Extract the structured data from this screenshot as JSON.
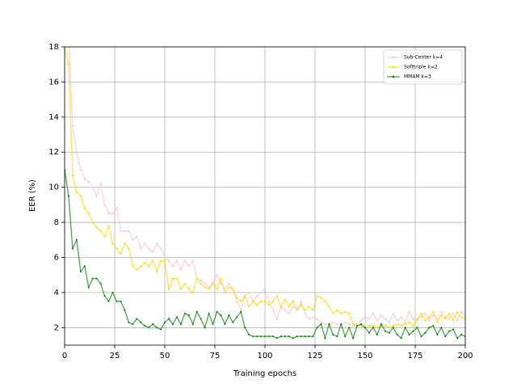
{
  "chart_data": {
    "type": "line",
    "xlabel": "Training epochs",
    "ylabel": "EER (%)",
    "x": [
      0,
      2,
      4,
      6,
      8,
      10,
      12,
      14,
      16,
      18,
      20,
      22,
      24,
      26,
      28,
      30,
      32,
      34,
      36,
      38,
      40,
      42,
      44,
      46,
      48,
      50,
      52,
      54,
      56,
      58,
      60,
      62,
      64,
      66,
      68,
      70,
      72,
      74,
      76,
      78,
      80,
      82,
      84,
      86,
      88,
      90,
      92,
      94,
      96,
      98,
      100,
      102,
      104,
      106,
      108,
      110,
      112,
      114,
      116,
      118,
      120,
      122,
      124,
      126,
      128,
      130,
      132,
      134,
      136,
      138,
      140,
      142,
      144,
      146,
      148,
      150,
      152,
      154,
      156,
      158,
      160,
      162,
      164,
      166,
      168,
      170,
      172,
      174,
      176,
      178,
      180,
      182,
      184,
      186,
      188,
      190,
      192,
      194,
      196,
      198,
      200
    ],
    "series": [
      {
        "name": "Sub-Center k=4",
        "color": "#ffc0cb",
        "values": [
          22,
          18.5,
          13.5,
          12,
          11,
          10.5,
          10.3,
          10,
          9.5,
          10.2,
          9,
          8.5,
          8.5,
          8.8,
          7.5,
          7.5,
          7.5,
          7,
          7.2,
          6.5,
          6.8,
          6.5,
          6.3,
          6.8,
          6.5,
          6,
          5.8,
          5.5,
          5.8,
          5.3,
          5.8,
          5.5,
          5.8,
          4.8,
          4.7,
          4.5,
          4.3,
          4.6,
          5,
          4.5,
          4.2,
          4.5,
          4.2,
          3.5,
          3,
          3.8,
          4,
          3.5,
          3.8,
          4,
          4.2,
          3.5,
          3,
          2.5,
          3.2,
          3,
          2.8,
          3.2,
          3,
          3.5,
          2.8,
          2.5,
          2.6,
          2.5,
          2.3,
          2.2,
          2.1,
          2.3,
          2.2,
          2.1,
          2.3,
          2.2,
          2.1,
          2.2,
          2.4,
          2.6,
          2.5,
          2.8,
          2.4,
          2.7,
          2.5,
          2.3,
          2.8,
          2.4,
          2.6,
          2.3,
          2.9,
          2.5,
          2.4,
          2.6,
          2.8,
          2.4,
          2.7,
          2.5,
          2.9,
          2.6,
          2.5,
          2.8,
          2.4,
          2.9,
          2.7
        ]
      },
      {
        "name": "Softtriple k=2",
        "color": "#ffd700",
        "values": [
          18,
          17,
          10.7,
          9.7,
          9.5,
          8.8,
          8.5,
          8,
          7.7,
          7.5,
          7.2,
          7.8,
          6.8,
          6.5,
          6.2,
          6.8,
          6.5,
          5.5,
          5.3,
          5.5,
          5.7,
          5.5,
          5.8,
          5.2,
          5.8,
          5.8,
          4.2,
          4.8,
          4.8,
          4.2,
          4.5,
          4.2,
          4,
          4.8,
          4.5,
          4.3,
          4.2,
          4.5,
          4.2,
          4.8,
          4,
          4.3,
          4.2,
          3.7,
          3.5,
          3.8,
          3.2,
          3.5,
          3.3,
          3.5,
          3.5,
          3.3,
          3.5,
          3.8,
          3.2,
          3.6,
          3.2,
          3.5,
          3,
          3.3,
          3,
          3.2,
          3,
          3.8,
          3.7,
          3.5,
          3.2,
          2.8,
          3,
          2.8,
          2.9,
          2.8,
          2.2,
          2.1,
          2.1,
          2,
          2.1,
          2.1,
          2,
          2.1,
          2.1,
          2,
          2.1,
          2.2,
          2.1,
          2.2,
          2.3,
          2.1,
          2.5,
          2.8,
          2.4,
          2.6,
          2.9,
          2.3,
          2.7,
          2.5,
          2.8,
          2.4,
          2.9,
          2.6,
          2.5
        ]
      },
      {
        "name": "MMAM k=3",
        "color": "#008000",
        "values": [
          11,
          9.5,
          6.5,
          7,
          5.2,
          5.5,
          4.3,
          4.8,
          4.8,
          4.5,
          3.8,
          3.5,
          4,
          3.5,
          3.5,
          3,
          2.3,
          2.2,
          2.5,
          2.3,
          2.1,
          2,
          2.2,
          2,
          1.9,
          2.3,
          2.5,
          2.2,
          2.6,
          2.2,
          2.8,
          2.7,
          2.2,
          2.9,
          2.5,
          2,
          2.8,
          2.2,
          2.9,
          2.7,
          2.2,
          2.7,
          2.3,
          2.6,
          2.9,
          2,
          1.6,
          1.5,
          1.5,
          1.5,
          1.5,
          1.5,
          1.5,
          1.4,
          1.5,
          1.5,
          1.5,
          1.4,
          1.5,
          1.5,
          1.5,
          1.5,
          1.5,
          2,
          2.2,
          1.4,
          2.2,
          1.6,
          1.5,
          2.2,
          1.5,
          2,
          1.4,
          2.1,
          2.2,
          2,
          1.7,
          2,
          1.6,
          2.2,
          1.8,
          1.7,
          2,
          1.6,
          1.4,
          2,
          1.6,
          1.8,
          2,
          1.5,
          1.7,
          2,
          2.1,
          1.6,
          2,
          1.5,
          1.8,
          1.9,
          1.4,
          1.6,
          1.5
        ]
      }
    ],
    "xlim": [
      0,
      200
    ],
    "xticks": [
      0,
      25,
      50,
      75,
      100,
      125,
      150,
      175,
      200
    ],
    "ylim": [
      1,
      18
    ],
    "yticks": [
      2,
      4,
      6,
      8,
      10,
      12,
      14,
      16,
      18
    ],
    "grid": true,
    "legend": "upper right"
  }
}
